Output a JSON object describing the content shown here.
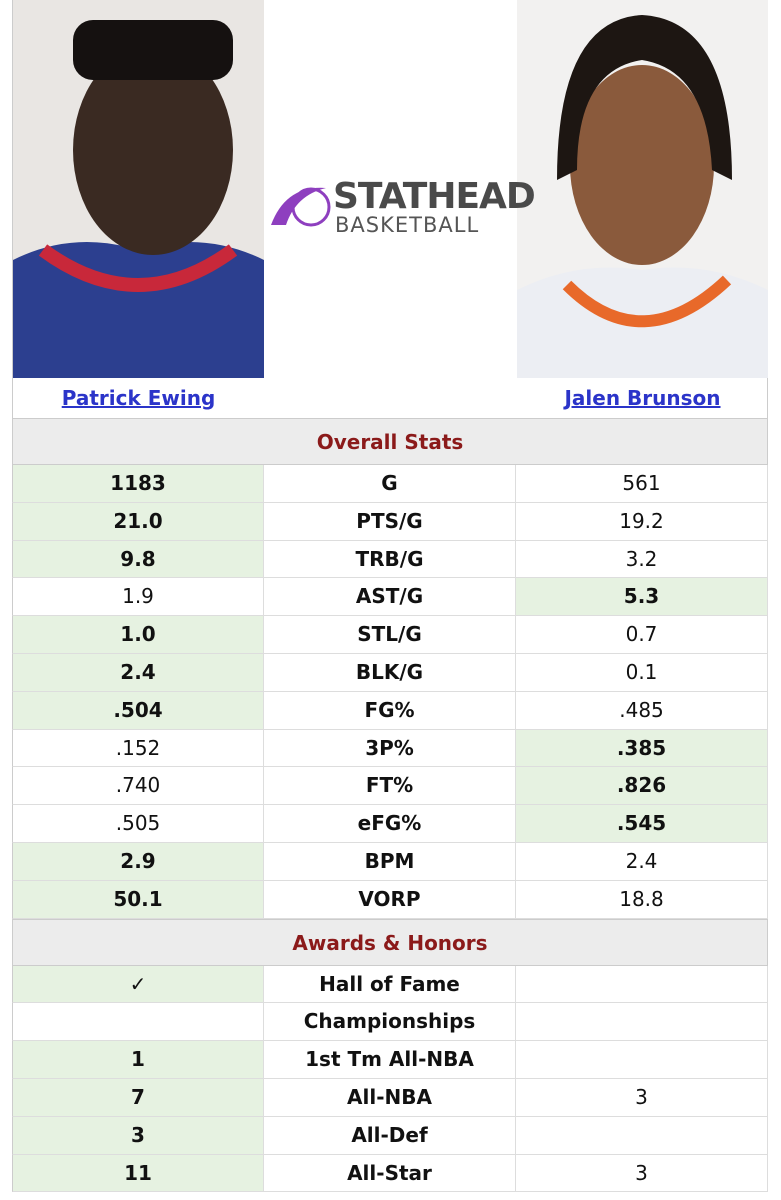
{
  "brand": {
    "name": "STATHEAD",
    "sub": "BASKETBALL"
  },
  "players": [
    {
      "name": "Patrick Ewing"
    },
    {
      "name": "Jalen Brunson"
    }
  ],
  "sections": [
    {
      "title": "Overall Stats",
      "rows": [
        {
          "left": "1183",
          "stat": "G",
          "right": "561",
          "leader": "left"
        },
        {
          "left": "21.0",
          "stat": "PTS/G",
          "right": "19.2",
          "leader": "left"
        },
        {
          "left": "9.8",
          "stat": "TRB/G",
          "right": "3.2",
          "leader": "left"
        },
        {
          "left": "1.9",
          "stat": "AST/G",
          "right": "5.3",
          "leader": "right"
        },
        {
          "left": "1.0",
          "stat": "STL/G",
          "right": "0.7",
          "leader": "left"
        },
        {
          "left": "2.4",
          "stat": "BLK/G",
          "right": "0.1",
          "leader": "left"
        },
        {
          "left": ".504",
          "stat": "FG%",
          "right": ".485",
          "leader": "left"
        },
        {
          "left": ".152",
          "stat": "3P%",
          "right": ".385",
          "leader": "right"
        },
        {
          "left": ".740",
          "stat": "FT%",
          "right": ".826",
          "leader": "right"
        },
        {
          "left": ".505",
          "stat": "eFG%",
          "right": ".545",
          "leader": "right"
        },
        {
          "left": "2.9",
          "stat": "BPM",
          "right": "2.4",
          "leader": "left"
        },
        {
          "left": "50.1",
          "stat": "VORP",
          "right": "18.8",
          "leader": "left"
        }
      ]
    },
    {
      "title": "Awards & Honors",
      "rows": [
        {
          "left": "✓",
          "stat": "Hall of Fame",
          "right": null,
          "leader": "left"
        },
        {
          "left": null,
          "stat": "Championships",
          "right": null,
          "leader": null
        },
        {
          "left": "1",
          "stat": "1st Tm All-NBA",
          "right": null,
          "leader": "left"
        },
        {
          "left": "7",
          "stat": "All-NBA",
          "right": "3",
          "leader": "left"
        },
        {
          "left": "3",
          "stat": "All-Def",
          "right": null,
          "leader": "left"
        },
        {
          "left": "11",
          "stat": "All-Star",
          "right": "3",
          "leader": "left"
        }
      ]
    }
  ]
}
